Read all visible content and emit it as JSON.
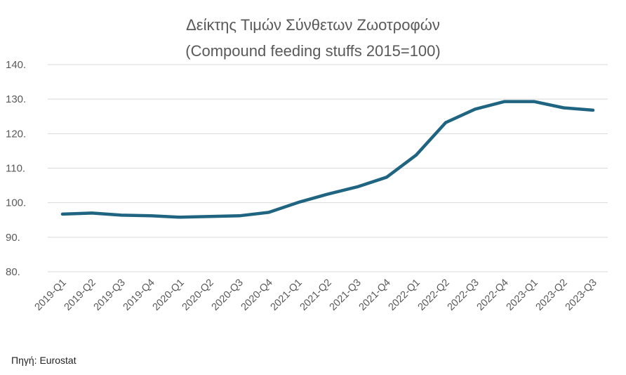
{
  "chart_data": {
    "type": "line",
    "title_line1": "Δείκτης Τιμών Σύνθετων Ζωοτροφών",
    "title_line2": "(Compound feeding stuffs 2015=100)",
    "categories": [
      "2019-Q1",
      "2019-Q2",
      "2019-Q3",
      "2019-Q4",
      "2020-Q1",
      "2020-Q2",
      "2020-Q3",
      "2020-Q4",
      "2021-Q1",
      "2021-Q2",
      "2021-Q3",
      "2021-Q4",
      "2022-Q1",
      "2022-Q2",
      "2022-Q3",
      "2022-Q4",
      "2023-Q1",
      "2023-Q2",
      "2023-Q3"
    ],
    "values": [
      96.7,
      97.0,
      96.4,
      96.2,
      95.8,
      96.0,
      96.2,
      97.2,
      100.1,
      102.5,
      104.6,
      107.4,
      113.8,
      123.2,
      127.1,
      129.3,
      129.3,
      127.5,
      126.8
    ],
    "ylim": [
      80,
      140
    ],
    "yticks": [
      80,
      90,
      100,
      110,
      120,
      130,
      140
    ],
    "ytick_labels": [
      "80.",
      "90.",
      "100.",
      "110.",
      "120.",
      "130.",
      "140."
    ],
    "grid": true,
    "series_color": "#1f6582"
  },
  "source": "Πηγή: Eurostat"
}
